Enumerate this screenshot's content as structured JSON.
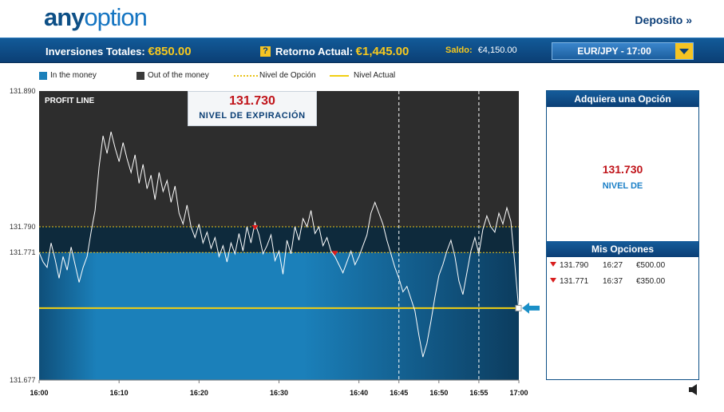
{
  "header": {
    "logo_bold": "any",
    "logo_light": "option",
    "deposit_link": "Deposito »"
  },
  "status": {
    "investments_label": "Inversiones Totales:",
    "investments_value": "€850.00",
    "return_label": "Retorno Actual:",
    "return_value": "€1,445.00",
    "balance_label": "Saldo:",
    "balance_value": "€4,150.00",
    "asset_selected": "EUR/JPY - 17:00",
    "help_icon": "question-icon"
  },
  "legend": {
    "in_money": "In the money",
    "out_money": "Out of the money",
    "option_level": "Nivel de Opción",
    "current_level": "Nivel Actual"
  },
  "chart": {
    "profit_line_label": "PROFIT LINE",
    "expiry_price": "131.730",
    "expiry_label": "NIVEL DE EXPIRACIÓN"
  },
  "chart_data": {
    "type": "line",
    "y_ticks": [
      "131.890",
      "131.790",
      "131.771",
      "131.677"
    ],
    "x_ticks": [
      "16:00",
      "16:10",
      "16:20",
      "16:30",
      "16:40",
      "16:45",
      "16:50",
      "16:55",
      "17:00"
    ],
    "ylim": [
      131.677,
      131.89
    ],
    "option_levels": [
      131.79,
      131.771
    ],
    "current_level": 131.73,
    "colors": {
      "in_money": "#1b80ba",
      "out_money": "#2d2d2d",
      "option_level": "#e9c31a",
      "current_level": "#f1cf12",
      "price_line": "#ffffff"
    },
    "series": [
      {
        "values": [
          [
            0,
            131.771
          ],
          [
            0.5,
            131.764
          ],
          [
            1,
            131.76
          ],
          [
            1.5,
            131.778
          ],
          [
            2,
            131.766
          ],
          [
            2.5,
            131.752
          ],
          [
            3,
            131.768
          ],
          [
            3.5,
            131.758
          ],
          [
            4,
            131.775
          ],
          [
            4.5,
            131.762
          ],
          [
            5,
            131.749
          ],
          [
            5.5,
            131.76
          ],
          [
            6,
            131.768
          ],
          [
            6.5,
            131.786
          ],
          [
            7,
            131.802
          ],
          [
            7.5,
            131.834
          ],
          [
            8,
            131.857
          ],
          [
            8.5,
            131.844
          ],
          [
            9,
            131.86
          ],
          [
            9.5,
            131.848
          ],
          [
            10,
            131.838
          ],
          [
            10.5,
            131.852
          ],
          [
            11,
            131.84
          ],
          [
            11.5,
            131.83
          ],
          [
            12,
            131.843
          ],
          [
            12.5,
            131.822
          ],
          [
            13,
            131.836
          ],
          [
            13.5,
            131.818
          ],
          [
            14,
            131.828
          ],
          [
            14.5,
            131.81
          ],
          [
            15,
            131.83
          ],
          [
            15.5,
            131.816
          ],
          [
            16,
            131.824
          ],
          [
            16.5,
            131.808
          ],
          [
            17,
            131.82
          ],
          [
            17.5,
            131.8
          ],
          [
            18,
            131.792
          ],
          [
            18.5,
            131.806
          ],
          [
            19,
            131.79
          ],
          [
            19.5,
            131.782
          ],
          [
            20,
            131.792
          ],
          [
            20.5,
            131.778
          ],
          [
            21,
            131.786
          ],
          [
            21.5,
            131.774
          ],
          [
            22,
            131.782
          ],
          [
            22.5,
            131.768
          ],
          [
            23,
            131.776
          ],
          [
            23.5,
            131.764
          ],
          [
            24,
            131.778
          ],
          [
            24.5,
            131.77
          ],
          [
            25,
            131.785
          ],
          [
            25.5,
            131.772
          ],
          [
            26,
            131.79
          ],
          [
            26.5,
            131.778
          ],
          [
            27,
            131.793
          ],
          [
            27.5,
            131.784
          ],
          [
            28,
            131.77
          ],
          [
            28.5,
            131.776
          ],
          [
            29,
            131.784
          ],
          [
            29.5,
            131.765
          ],
          [
            30,
            131.772
          ],
          [
            30.5,
            131.755
          ],
          [
            31,
            131.78
          ],
          [
            31.5,
            131.77
          ],
          [
            32,
            131.79
          ],
          [
            32.5,
            131.78
          ],
          [
            33,
            131.796
          ],
          [
            33.5,
            131.79
          ],
          [
            34,
            131.802
          ],
          [
            34.5,
            131.785
          ],
          [
            35,
            131.79
          ],
          [
            35.5,
            131.776
          ],
          [
            36,
            131.782
          ],
          [
            36.5,
            131.772
          ],
          [
            37,
            131.768
          ],
          [
            37.5,
            131.762
          ],
          [
            38,
            131.756
          ],
          [
            38.5,
            131.764
          ],
          [
            39,
            131.772
          ],
          [
            39.5,
            131.762
          ],
          [
            40,
            131.768
          ],
          [
            40.5,
            131.776
          ],
          [
            41,
            131.784
          ],
          [
            41.5,
            131.8
          ],
          [
            42,
            131.808
          ],
          [
            42.5,
            131.8
          ],
          [
            43,
            131.792
          ],
          [
            43.5,
            131.78
          ],
          [
            44,
            131.77
          ],
          [
            44.5,
            131.76
          ],
          [
            45,
            131.752
          ],
          [
            45.5,
            131.742
          ],
          [
            46,
            131.746
          ],
          [
            46.5,
            131.737
          ],
          [
            47,
            131.728
          ],
          [
            47.5,
            131.71
          ],
          [
            48,
            131.694
          ],
          [
            48.5,
            131.704
          ],
          [
            49,
            131.72
          ],
          [
            49.5,
            131.738
          ],
          [
            50,
            131.754
          ],
          [
            50.5,
            131.762
          ],
          [
            51,
            131.772
          ],
          [
            51.5,
            131.78
          ],
          [
            52,
            131.768
          ],
          [
            52.5,
            131.75
          ],
          [
            53,
            131.74
          ],
          [
            53.5,
            131.756
          ],
          [
            54,
            131.772
          ],
          [
            54.5,
            131.782
          ],
          [
            55,
            131.77
          ],
          [
            55.5,
            131.788
          ],
          [
            56,
            131.798
          ],
          [
            56.5,
            131.79
          ],
          [
            57,
            131.786
          ],
          [
            57.5,
            131.8
          ],
          [
            58,
            131.792
          ],
          [
            58.5,
            131.804
          ],
          [
            59,
            131.794
          ],
          [
            59.5,
            131.762
          ],
          [
            60,
            131.728
          ]
        ]
      }
    ]
  },
  "panel": {
    "buy_title": "Adquiera una Opción",
    "buy_price": "131.730",
    "buy_label": "NIVEL DE",
    "my_options_title": "Mis Opciones",
    "options": [
      {
        "level": "131.790",
        "time": "16:27",
        "amount": "€500.00"
      },
      {
        "level": "131.771",
        "time": "16:37",
        "amount": "€350.00"
      }
    ]
  },
  "controls": {
    "sound_icon": "speaker-icon",
    "marker_icon": "arrow-left-icon"
  }
}
